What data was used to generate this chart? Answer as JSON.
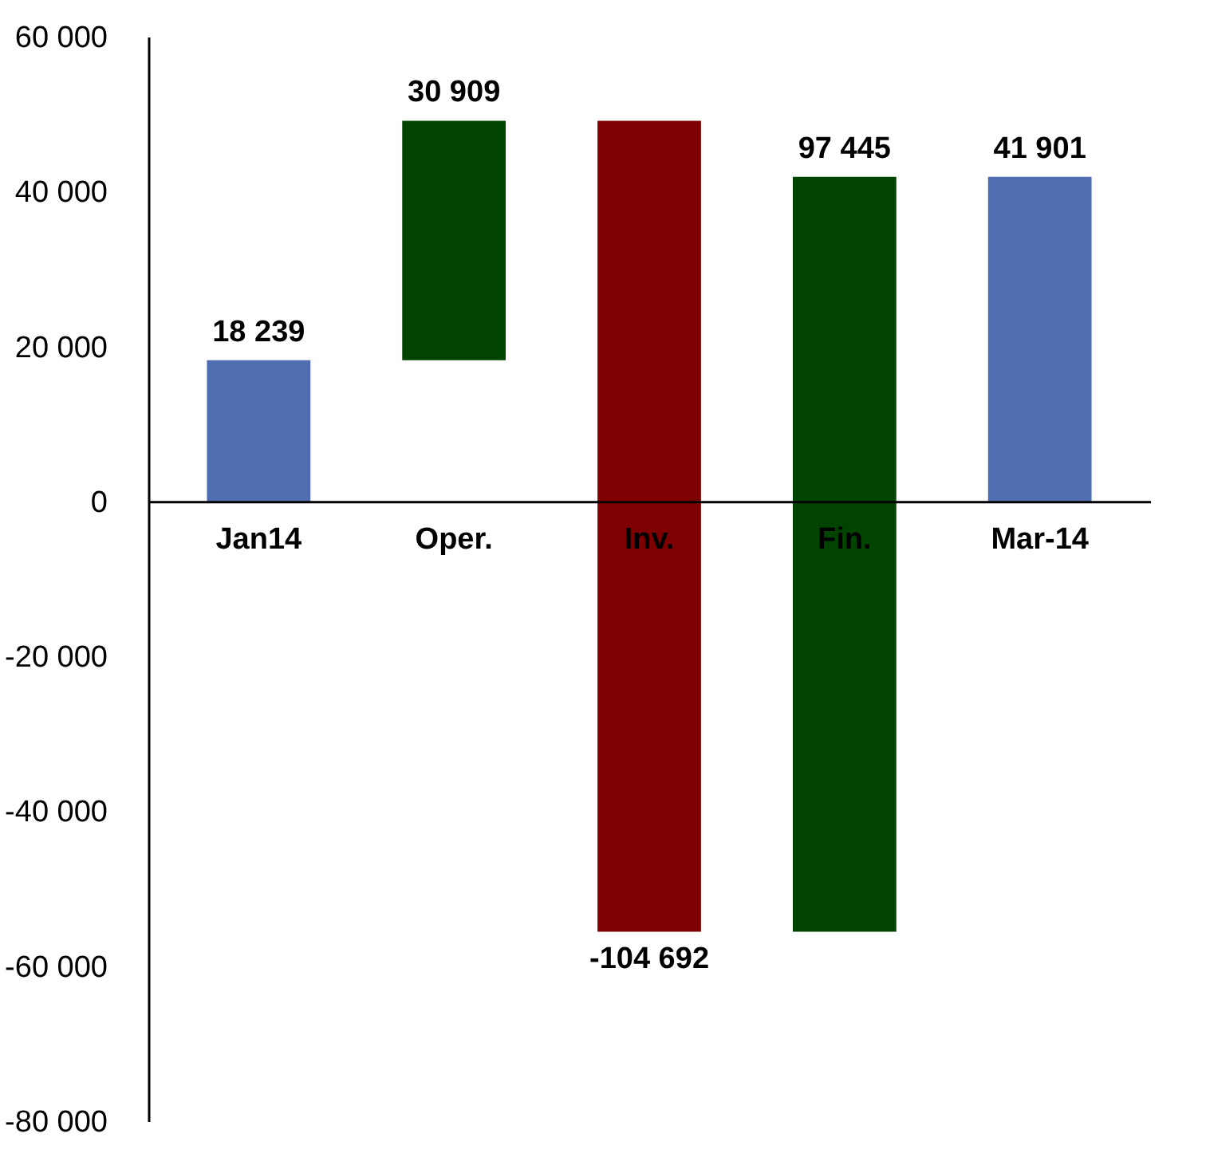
{
  "chart_data": {
    "type": "bar",
    "categories": [
      "Jan14",
      "Oper.",
      "Inv.",
      "Fin.",
      "Mar-14"
    ],
    "values": [
      18239,
      30909,
      -104692,
      97445,
      41901
    ],
    "base": [
      0,
      18239,
      49148,
      -55544,
      0
    ],
    "colors": [
      "#4f6db0",
      "#004400",
      "#7f0000",
      "#004400",
      "#4f6db0"
    ],
    "value_labels": [
      "18 239",
      "30 909",
      "-104 692",
      "97 445",
      "41 901"
    ],
    "ylim": [
      -80000,
      60000
    ],
    "yticks": [
      {
        "value": -80000,
        "label": "-80 000"
      },
      {
        "value": -60000,
        "label": "-60 000"
      },
      {
        "value": -40000,
        "label": "-40 000"
      },
      {
        "value": -20000,
        "label": "-20 000"
      },
      {
        "value": 0,
        "label": "0"
      },
      {
        "value": 20000,
        "label": "20 000"
      },
      {
        "value": 40000,
        "label": "40 000"
      },
      {
        "value": 60000,
        "label": "60 000"
      }
    ],
    "grid": false
  }
}
